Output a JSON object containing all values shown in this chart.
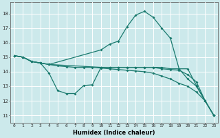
{
  "xlabel": "Humidex (Indice chaleur)",
  "background_color": "#cce9eb",
  "grid_color": "#ffffff",
  "line_color": "#1a7a6e",
  "xlim": [
    -0.5,
    23.5
  ],
  "ylim": [
    10.5,
    18.8
  ],
  "yticks": [
    11,
    12,
    13,
    14,
    15,
    16,
    17,
    18
  ],
  "xticks": [
    0,
    1,
    2,
    3,
    4,
    5,
    6,
    7,
    8,
    9,
    10,
    11,
    12,
    13,
    14,
    15,
    16,
    17,
    18,
    19,
    20,
    21,
    22,
    23
  ],
  "line1_x": [
    0,
    1,
    2,
    3,
    4,
    5,
    6,
    7,
    8,
    9,
    10,
    11,
    12,
    13,
    14,
    15,
    16,
    17,
    18,
    19,
    20,
    21,
    22,
    23
  ],
  "line1_y": [
    15.1,
    15.0,
    14.7,
    14.6,
    13.9,
    12.7,
    12.5,
    12.5,
    13.05,
    13.1,
    14.3,
    14.3,
    14.3,
    14.3,
    14.3,
    14.3,
    14.3,
    14.3,
    14.2,
    14.2,
    13.5,
    13.0,
    12.0,
    11.0
  ],
  "line2_x": [
    0,
    1,
    2,
    3,
    4,
    10,
    11,
    12,
    13,
    14,
    15,
    16,
    17,
    18,
    19,
    20,
    21,
    22,
    23
  ],
  "line2_y": [
    15.1,
    15.0,
    14.7,
    14.6,
    14.5,
    14.3,
    14.3,
    14.3,
    14.3,
    14.3,
    14.3,
    14.3,
    14.2,
    14.15,
    14.1,
    13.8,
    13.3,
    12.0,
    11.0
  ],
  "line3_x": [
    0,
    1,
    2,
    3,
    4,
    10,
    11,
    12,
    13,
    14,
    15,
    16,
    17,
    18,
    19,
    20,
    21,
    22,
    23
  ],
  "line3_y": [
    15.1,
    15.0,
    14.7,
    14.6,
    14.5,
    15.5,
    15.9,
    16.1,
    17.1,
    17.9,
    18.15,
    17.75,
    17.0,
    16.3,
    14.2,
    14.2,
    13.05,
    12.0,
    11.0
  ],
  "line4_x": [
    0,
    1,
    2,
    3,
    4,
    5,
    6,
    7,
    8,
    9,
    10,
    11,
    12,
    13,
    14,
    15,
    16,
    17,
    18,
    19,
    20,
    21,
    22,
    23
  ],
  "line4_y": [
    15.1,
    15.0,
    14.7,
    14.6,
    14.5,
    14.4,
    14.35,
    14.3,
    14.3,
    14.3,
    14.25,
    14.2,
    14.15,
    14.1,
    14.05,
    14.0,
    13.9,
    13.7,
    13.5,
    13.2,
    13.0,
    12.6,
    12.0,
    11.0
  ]
}
